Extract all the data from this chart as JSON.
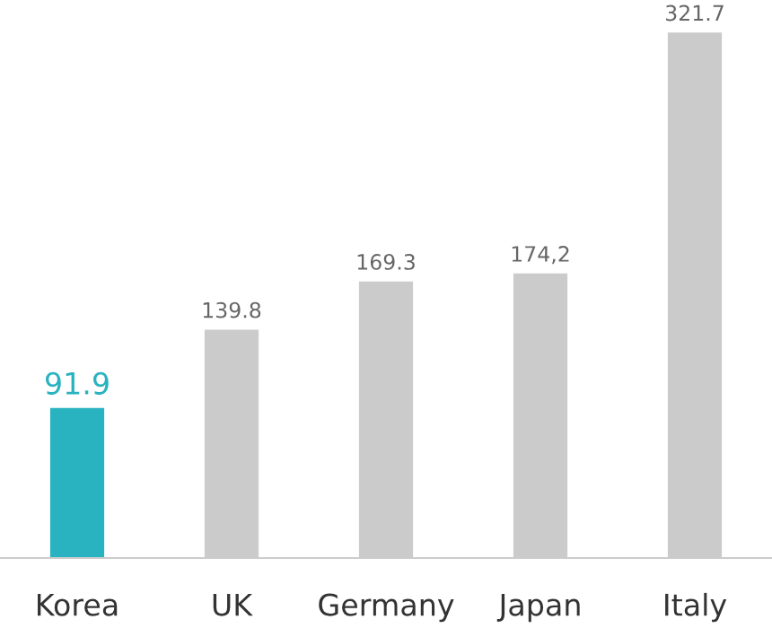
{
  "chart_data": {
    "type": "bar",
    "categories": [
      "Korea",
      "UK",
      "Germany",
      "Japan",
      "Italy"
    ],
    "values": [
      91.9,
      139.8,
      169.3,
      174.2,
      321.7
    ],
    "value_labels": [
      "91.9",
      "139.8",
      "169.3",
      "174,2",
      "321.7"
    ],
    "colors": [
      "#29b2bf",
      "#cbcbcb",
      "#cbcbcb",
      "#cbcbcb",
      "#cbcbcb"
    ],
    "grid": false,
    "legend": false
  }
}
